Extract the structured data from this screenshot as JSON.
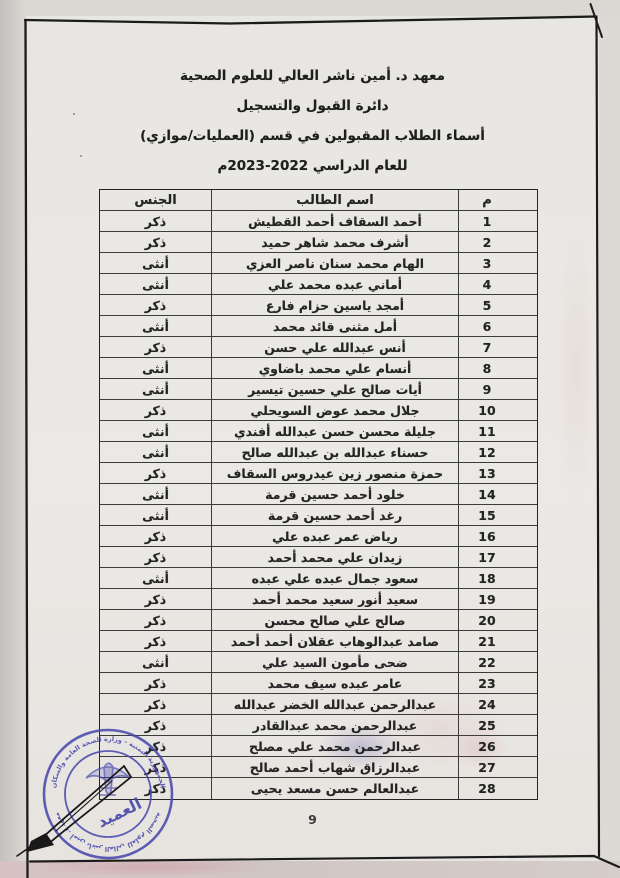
{
  "header": {
    "line1": "معهد د. أمين ناشر العالي للعلوم الصحية",
    "line2": "دائرة القبول والتسجيل",
    "line3": "أسماء الطلاب المقبولين في قسم (العمليات/موازي)",
    "line4": "للعام الدراسي 2022‏-‏2023م"
  },
  "table": {
    "columns": {
      "serial": "م",
      "name": "اسم الطالب",
      "gender": "الجنس"
    },
    "rows": [
      {
        "serial": "1",
        "name": "أحمد السقاف أحمد القطيش",
        "gender": "ذكر"
      },
      {
        "serial": "2",
        "name": "أشرف محمد شاهر حميد",
        "gender": "ذكر"
      },
      {
        "serial": "3",
        "name": "الهام محمد سنان ناصر العزي",
        "gender": "أنثى"
      },
      {
        "serial": "4",
        "name": "أماني عبده محمد علي",
        "gender": "أنثى"
      },
      {
        "serial": "5",
        "name": "أمجد ياسين حزام فارع",
        "gender": "ذكر"
      },
      {
        "serial": "6",
        "name": "أمل مثنى قائد محمد",
        "gender": "أنثى"
      },
      {
        "serial": "7",
        "name": "أنس عبدالله علي حسن",
        "gender": "ذكر"
      },
      {
        "serial": "8",
        "name": "أنسام علي محمد باضاوي",
        "gender": "أنثى"
      },
      {
        "serial": "9",
        "name": "أيات صالح علي حسين تيسير",
        "gender": "أنثى"
      },
      {
        "serial": "10",
        "name": "جلال محمد عوض السويحلي",
        "gender": "ذكر"
      },
      {
        "serial": "11",
        "name": "جليلة محسن حسن عبدالله أفندي",
        "gender": "أنثى"
      },
      {
        "serial": "12",
        "name": "حسناء عبدالله بن عبدالله صالح",
        "gender": "أنثى"
      },
      {
        "serial": "13",
        "name": "حمزة منصور زين عيدروس السقاف",
        "gender": "ذكر"
      },
      {
        "serial": "14",
        "name": "خلود أحمد حسين قرمة",
        "gender": "أنثى"
      },
      {
        "serial": "15",
        "name": "رغد أحمد حسين قرمة",
        "gender": "أنثى"
      },
      {
        "serial": "16",
        "name": "رياض عمر عبده علي",
        "gender": "ذكر"
      },
      {
        "serial": "17",
        "name": "زيدان علي محمد أحمد",
        "gender": "ذكر"
      },
      {
        "serial": "18",
        "name": "سعود جمال عبده علي عبده",
        "gender": "أنثى"
      },
      {
        "serial": "19",
        "name": "سعيد أنور سعيد محمد أحمد",
        "gender": "ذكر"
      },
      {
        "serial": "20",
        "name": "صالح علي صالح محسن",
        "gender": "ذكر"
      },
      {
        "serial": "21",
        "name": "صامد عبدالوهاب عقلان أحمد أحمد",
        "gender": "ذكر"
      },
      {
        "serial": "22",
        "name": "ضحى مأمون السيد علي",
        "gender": "أنثى"
      },
      {
        "serial": "23",
        "name": "عامر عبده سيف محمد",
        "gender": "ذكر"
      },
      {
        "serial": "24",
        "name": "عبدالرحمن عبدالله الخضر عبدالله",
        "gender": "ذكر"
      },
      {
        "serial": "25",
        "name": "عبدالرحمن محمد عبدالقادر",
        "gender": "ذكر"
      },
      {
        "serial": "26",
        "name": "عبدالرحمن محمد علي مصلح",
        "gender": "ذكر"
      },
      {
        "serial": "27",
        "name": "عبدالرزاق شهاب أحمد صالح",
        "gender": "ذكر"
      },
      {
        "serial": "28",
        "name": "عبدالعالم حسن مسعد يحيى",
        "gender": "ذكر"
      }
    ]
  },
  "footer": {
    "page_number": "9"
  },
  "stamp": {
    "ring_top": "الجمهورية اليمنية - وزارة الصحة العامة والسكان",
    "ring_bottom": "معهد د. أمين ناشر العالي للعلوم الصحية",
    "center": "العميد",
    "ink_color": "#4949ad"
  },
  "scan": {
    "paper_color": "#eae8e4",
    "border_ink_color": "#1b1b1b",
    "bed_pink_color": "#d3c5c5"
  }
}
